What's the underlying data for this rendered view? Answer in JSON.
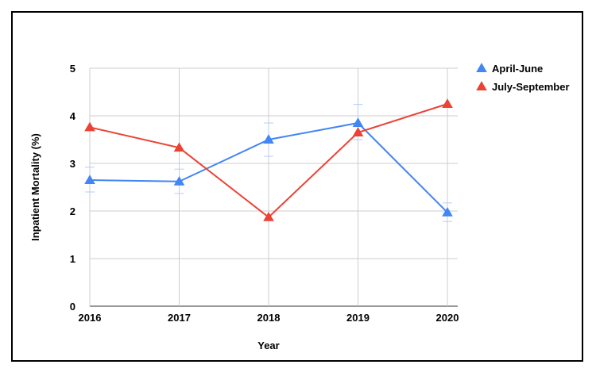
{
  "chart_data": {
    "type": "line",
    "title": "",
    "xlabel": "Year",
    "ylabel": "Inpatient Mortality (%)",
    "ylim": [
      0,
      5
    ],
    "yticks": [
      "0",
      "1",
      "2",
      "3",
      "4",
      "5"
    ],
    "categories": [
      "2016",
      "2017",
      "2018",
      "2019",
      "2020"
    ],
    "grid": true,
    "legend_position": "right",
    "series": [
      {
        "name": "April-June",
        "color": "#4285F4",
        "marker": "triangle",
        "values": [
          2.65,
          2.62,
          3.5,
          3.85,
          1.97
        ],
        "error_low": [
          2.4,
          2.37,
          3.15,
          3.5,
          1.78
        ],
        "error_high": [
          2.92,
          2.88,
          3.85,
          4.24,
          2.17
        ]
      },
      {
        "name": "July-September",
        "color": "#EA4335",
        "marker": "triangle",
        "values": [
          3.76,
          3.33,
          1.87,
          3.65,
          4.25
        ]
      }
    ]
  }
}
